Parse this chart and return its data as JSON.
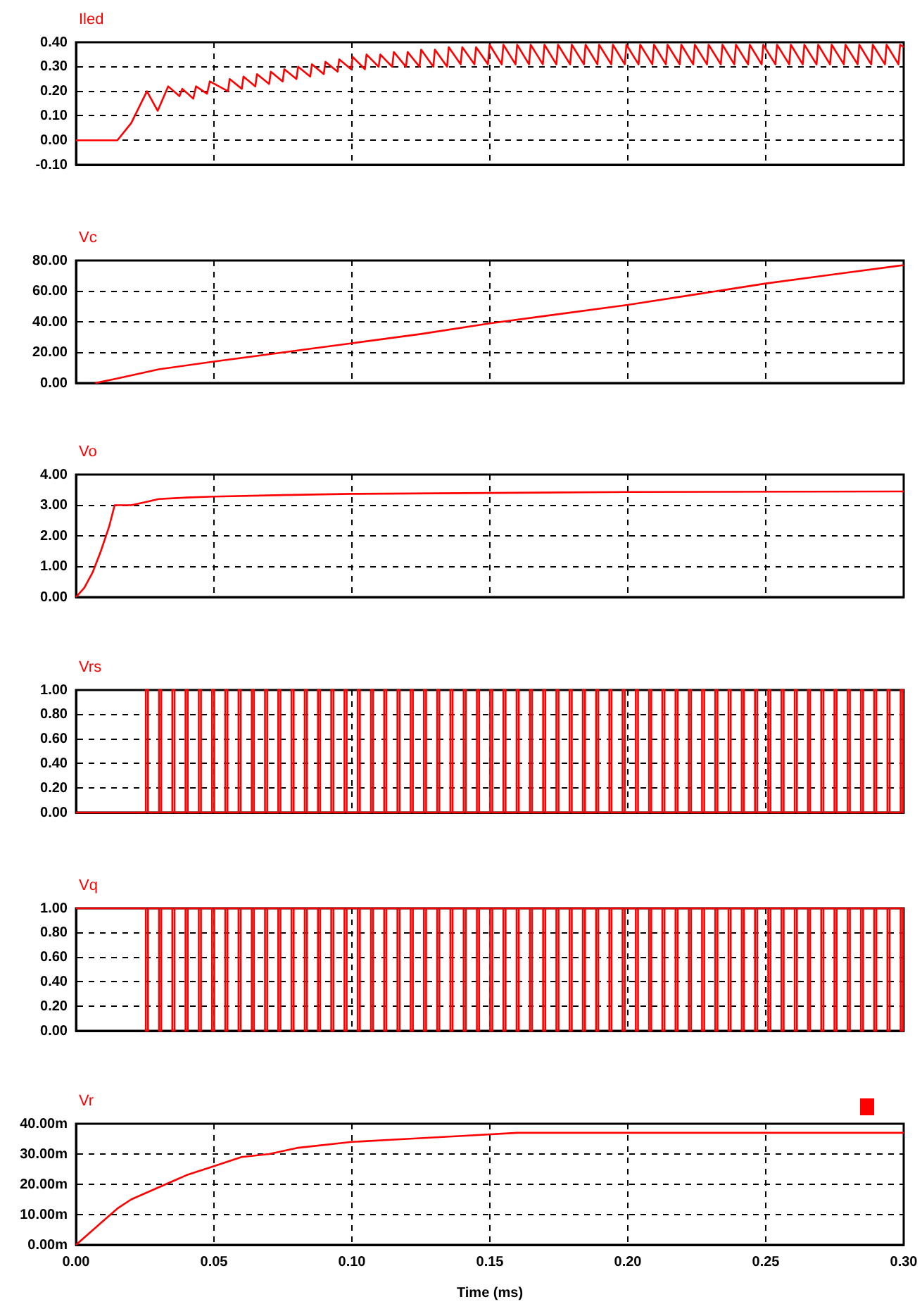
{
  "chart_data": [
    {
      "type": "line",
      "title": "Iled",
      "tick_labels": "y",
      "grid": true,
      "marker": "none",
      "xlim": [
        0,
        0.3
      ],
      "xticks": [
        0,
        0.05,
        0.1,
        0.15,
        0.2,
        0.25,
        0.3
      ],
      "ylim": [
        -0.1,
        0.4
      ],
      "yticks": [
        {
          "value": -0.1,
          "label": "-0.10"
        },
        {
          "value": 0,
          "label": "0.00"
        },
        {
          "value": 0.1,
          "label": "0.10"
        },
        {
          "value": 0.2,
          "label": "0.20"
        },
        {
          "value": 0.3,
          "label": "0.30"
        },
        {
          "value": 0.4,
          "label": "0.40"
        }
      ],
      "x": [
        0,
        0.015,
        0.02,
        0.0257,
        0.0296,
        0.0334,
        0.0375,
        0.0385,
        0.0425,
        0.0435,
        0.0475,
        0.0485,
        0.0551,
        0.0557,
        0.0601,
        0.0607,
        0.065,
        0.0656,
        0.07,
        0.0706,
        0.0749,
        0.0755,
        0.0799,
        0.0805,
        0.0849,
        0.0855,
        0.0898,
        0.0904,
        0.0948,
        0.0954,
        0.0997,
        0.1003,
        0.1047,
        0.1053,
        0.1097,
        0.1103,
        0.1146,
        0.1152,
        0.1196,
        0.1202,
        0.1245,
        0.1251,
        0.1295,
        0.1301,
        0.1345,
        0.1351,
        0.1394,
        0.14,
        0.1444,
        0.145,
        0.1493,
        0.1499,
        0.1543,
        0.1549,
        0.1593,
        0.1599,
        0.1642,
        0.1648,
        0.1692,
        0.1698,
        0.1741,
        0.1747,
        0.1791,
        0.1797,
        0.1841,
        0.1847,
        0.189,
        0.1896,
        0.194,
        0.1946,
        0.1989,
        0.1995,
        0.2039,
        0.2045,
        0.2089,
        0.2095,
        0.2138,
        0.2144,
        0.2188,
        0.2194,
        0.2237,
        0.2243,
        0.2287,
        0.2293,
        0.2337,
        0.2343,
        0.2386,
        0.2392,
        0.2436,
        0.2442,
        0.2485,
        0.2491,
        0.2535,
        0.2541,
        0.2585,
        0.2591,
        0.2634,
        0.264,
        0.2684,
        0.269,
        0.2733,
        0.2739,
        0.2783,
        0.2789,
        0.2833,
        0.2839,
        0.2882,
        0.2888,
        0.2932,
        0.2938,
        0.2981,
        0.2987,
        0.3
      ],
      "series": [
        {
          "color": "#ff0000",
          "values": [
            0,
            0,
            0.07,
            0.2,
            0.12,
            0.22,
            0.18,
            0.21,
            0.17,
            0.22,
            0.19,
            0.24,
            0.2,
            0.25,
            0.21,
            0.26,
            0.22,
            0.27,
            0.23,
            0.28,
            0.24,
            0.29,
            0.25,
            0.3,
            0.26,
            0.31,
            0.27,
            0.32,
            0.28,
            0.33,
            0.29,
            0.34,
            0.29,
            0.35,
            0.3,
            0.35,
            0.3,
            0.36,
            0.3,
            0.36,
            0.3,
            0.37,
            0.3,
            0.37,
            0.3,
            0.38,
            0.31,
            0.38,
            0.31,
            0.38,
            0.31,
            0.39,
            0.31,
            0.39,
            0.31,
            0.39,
            0.31,
            0.39,
            0.31,
            0.39,
            0.31,
            0.39,
            0.31,
            0.39,
            0.31,
            0.39,
            0.31,
            0.39,
            0.31,
            0.39,
            0.31,
            0.39,
            0.31,
            0.39,
            0.31,
            0.39,
            0.31,
            0.39,
            0.31,
            0.39,
            0.31,
            0.39,
            0.31,
            0.39,
            0.31,
            0.39,
            0.31,
            0.39,
            0.31,
            0.39,
            0.31,
            0.39,
            0.31,
            0.39,
            0.31,
            0.39,
            0.31,
            0.39,
            0.31,
            0.39,
            0.31,
            0.39,
            0.31,
            0.39,
            0.31,
            0.39,
            0.31,
            0.39,
            0.31,
            0.39,
            0.31,
            0.39,
            0.38
          ]
        }
      ]
    },
    {
      "type": "line",
      "title": "Vc",
      "tick_labels": "y",
      "grid": true,
      "marker": "none",
      "xlim": [
        0,
        0.3
      ],
      "xticks": [
        0,
        0.05,
        0.1,
        0.15,
        0.2,
        0.25,
        0.3
      ],
      "ylim": [
        0,
        80
      ],
      "yticks": [
        {
          "value": 0,
          "label": "0.00"
        },
        {
          "value": 20,
          "label": "20.00"
        },
        {
          "value": 40,
          "label": "40.00"
        },
        {
          "value": 60,
          "label": "60.00"
        },
        {
          "value": 80,
          "label": "80.00"
        }
      ],
      "x": [
        0.007,
        0.015,
        0.03,
        0.05,
        0.075,
        0.1,
        0.125,
        0.15,
        0.175,
        0.2,
        0.225,
        0.25,
        0.275,
        0.3
      ],
      "series": [
        {
          "color": "#ff0000",
          "values": [
            0,
            3,
            9,
            14,
            20,
            26,
            32,
            39,
            45,
            51,
            58,
            65,
            71,
            77
          ]
        }
      ]
    },
    {
      "type": "line",
      "title": "Vo",
      "tick_labels": "y",
      "grid": true,
      "marker": "none",
      "xlim": [
        0,
        0.3
      ],
      "xticks": [
        0,
        0.05,
        0.1,
        0.15,
        0.2,
        0.25,
        0.3
      ],
      "ylim": [
        0,
        4
      ],
      "yticks": [
        {
          "value": 0,
          "label": "0.00"
        },
        {
          "value": 1,
          "label": "1.00"
        },
        {
          "value": 2,
          "label": "2.00"
        },
        {
          "value": 3,
          "label": "3.00"
        },
        {
          "value": 4,
          "label": "4.00"
        }
      ],
      "x": [
        0,
        0.003,
        0.006,
        0.009,
        0.012,
        0.014,
        0.02,
        0.025,
        0.03,
        0.04,
        0.05,
        0.075,
        0.1,
        0.15,
        0.2,
        0.3
      ],
      "series": [
        {
          "color": "#ff0000",
          "values": [
            0,
            0.3,
            0.8,
            1.5,
            2.3,
            3,
            3,
            3.1,
            3.2,
            3.25,
            3.28,
            3.33,
            3.37,
            3.4,
            3.43,
            3.45
          ]
        }
      ]
    },
    {
      "type": "step",
      "title": "Vrs",
      "tick_labels": "y",
      "grid": true,
      "marker": "none",
      "xlim": [
        0,
        0.3
      ],
      "xticks": [
        0,
        0.05,
        0.1,
        0.15,
        0.2,
        0.25,
        0.3
      ],
      "ylim": [
        0,
        1
      ],
      "yticks": [
        {
          "value": 0,
          "label": "0.00"
        },
        {
          "value": 0.2,
          "label": "0.20"
        },
        {
          "value": 0.4,
          "label": "0.40"
        },
        {
          "value": 0.6,
          "label": "0.60"
        },
        {
          "value": 0.8,
          "label": "0.80"
        },
        {
          "value": 1,
          "label": "1.00"
        }
      ],
      "x": [
        0,
        0.0253,
        0.0261,
        0.0301,
        0.0309,
        0.0349,
        0.0357,
        0.0397,
        0.0405,
        0.0445,
        0.0453,
        0.0493,
        0.0501,
        0.0541,
        0.0549,
        0.0589,
        0.0597,
        0.0637,
        0.0645,
        0.0685,
        0.0693,
        0.0733,
        0.0741,
        0.0781,
        0.0789,
        0.0829,
        0.0837,
        0.0877,
        0.0885,
        0.0925,
        0.0933,
        0.0973,
        0.0981,
        0.1021,
        0.1029,
        0.1069,
        0.1077,
        0.1117,
        0.1125,
        0.1165,
        0.1173,
        0.1213,
        0.1221,
        0.1261,
        0.1269,
        0.1309,
        0.1317,
        0.1357,
        0.1365,
        0.1405,
        0.1413,
        0.1453,
        0.1461,
        0.1501,
        0.1509,
        0.1549,
        0.1557,
        0.1597,
        0.1605,
        0.1645,
        0.1653,
        0.1693,
        0.1701,
        0.1741,
        0.1749,
        0.1789,
        0.1797,
        0.1837,
        0.1845,
        0.1885,
        0.1893,
        0.1933,
        0.1941,
        0.1981,
        0.1989,
        0.2029,
        0.2037,
        0.2077,
        0.2085,
        0.2125,
        0.2133,
        0.2173,
        0.2181,
        0.2221,
        0.2229,
        0.2269,
        0.2277,
        0.2317,
        0.2325,
        0.2365,
        0.2373,
        0.2413,
        0.2421,
        0.2461,
        0.2469,
        0.2509,
        0.2517,
        0.2557,
        0.2565,
        0.2605,
        0.2613,
        0.2653,
        0.2661,
        0.2701,
        0.2709,
        0.2749,
        0.2757,
        0.2797,
        0.2805,
        0.2845,
        0.2853,
        0.2893,
        0.2901,
        0.2941,
        0.2949,
        0.2989,
        0.2997,
        0.3
      ],
      "series": [
        {
          "color": "#ff0000",
          "values": [
            0,
            1,
            0,
            1,
            0,
            1,
            0,
            1,
            0,
            1,
            0,
            1,
            0,
            1,
            0,
            1,
            0,
            1,
            0,
            1,
            0,
            1,
            0,
            1,
            0,
            1,
            0,
            1,
            0,
            1,
            0,
            1,
            0,
            1,
            0,
            1,
            0,
            1,
            0,
            1,
            0,
            1,
            0,
            1,
            0,
            1,
            0,
            1,
            0,
            1,
            0,
            1,
            0,
            1,
            0,
            1,
            0,
            1,
            0,
            1,
            0,
            1,
            0,
            1,
            0,
            1,
            0,
            1,
            0,
            1,
            0,
            1,
            0,
            1,
            0,
            1,
            0,
            1,
            0,
            1,
            0,
            1,
            0,
            1,
            0,
            1,
            0,
            1,
            0,
            1,
            0,
            1,
            0,
            1,
            0,
            1,
            0,
            1,
            0,
            1,
            0,
            1,
            0,
            1,
            0,
            1,
            0,
            1,
            0,
            1,
            0,
            1,
            0,
            1,
            0,
            1,
            0,
            0
          ]
        }
      ]
    },
    {
      "type": "step",
      "title": "Vq",
      "tick_labels": "y",
      "grid": true,
      "marker": "none",
      "xlim": [
        0,
        0.3
      ],
      "xticks": [
        0,
        0.05,
        0.1,
        0.15,
        0.2,
        0.25,
        0.3
      ],
      "ylim": [
        0,
        1
      ],
      "yticks": [
        {
          "value": 0,
          "label": "0.00"
        },
        {
          "value": 0.2,
          "label": "0.20"
        },
        {
          "value": 0.4,
          "label": "0.40"
        },
        {
          "value": 0.6,
          "label": "0.60"
        },
        {
          "value": 0.8,
          "label": "0.80"
        },
        {
          "value": 1,
          "label": "1.00"
        }
      ],
      "x": [
        0,
        0.0253,
        0.0261,
        0.0301,
        0.0309,
        0.0349,
        0.0357,
        0.0397,
        0.0405,
        0.0445,
        0.0453,
        0.0493,
        0.0501,
        0.0541,
        0.0549,
        0.0589,
        0.0597,
        0.0637,
        0.0645,
        0.0685,
        0.0693,
        0.0733,
        0.0741,
        0.0781,
        0.0789,
        0.0829,
        0.0837,
        0.0877,
        0.0885,
        0.0925,
        0.0933,
        0.0973,
        0.0981,
        0.1021,
        0.1029,
        0.1069,
        0.1077,
        0.1117,
        0.1125,
        0.1165,
        0.1173,
        0.1213,
        0.1221,
        0.1261,
        0.1269,
        0.1309,
        0.1317,
        0.1357,
        0.1365,
        0.1405,
        0.1413,
        0.1453,
        0.1461,
        0.1501,
        0.1509,
        0.1549,
        0.1557,
        0.1597,
        0.1605,
        0.1645,
        0.1653,
        0.1693,
        0.1701,
        0.1741,
        0.1749,
        0.1789,
        0.1797,
        0.1837,
        0.1845,
        0.1885,
        0.1893,
        0.1933,
        0.1941,
        0.1981,
        0.1989,
        0.2029,
        0.2037,
        0.2077,
        0.2085,
        0.2125,
        0.2133,
        0.2173,
        0.2181,
        0.2221,
        0.2229,
        0.2269,
        0.2277,
        0.2317,
        0.2325,
        0.2365,
        0.2373,
        0.2413,
        0.2421,
        0.2461,
        0.2469,
        0.2509,
        0.2517,
        0.2557,
        0.2565,
        0.2605,
        0.2613,
        0.2653,
        0.2661,
        0.2701,
        0.2709,
        0.2749,
        0.2757,
        0.2797,
        0.2805,
        0.2845,
        0.2853,
        0.2893,
        0.2901,
        0.2941,
        0.2949,
        0.2989,
        0.2997,
        0.3
      ],
      "series": [
        {
          "color": "#ff0000",
          "values": [
            1,
            0,
            1,
            0,
            1,
            0,
            1,
            0,
            1,
            0,
            1,
            0,
            1,
            0,
            1,
            0,
            1,
            0,
            1,
            0,
            1,
            0,
            1,
            0,
            1,
            0,
            1,
            0,
            1,
            0,
            1,
            0,
            1,
            0,
            1,
            0,
            1,
            0,
            1,
            0,
            1,
            0,
            1,
            0,
            1,
            0,
            1,
            0,
            1,
            0,
            1,
            0,
            1,
            0,
            1,
            0,
            1,
            0,
            1,
            0,
            1,
            0,
            1,
            0,
            1,
            0,
            1,
            0,
            1,
            0,
            1,
            0,
            1,
            0,
            1,
            0,
            1,
            0,
            1,
            0,
            1,
            0,
            1,
            0,
            1,
            0,
            1,
            0,
            1,
            0,
            1,
            0,
            1,
            0,
            1,
            0,
            1,
            0,
            1,
            0,
            1,
            0,
            1,
            0,
            1,
            0,
            1,
            0,
            1,
            0,
            1,
            0,
            1,
            0,
            1,
            0,
            1,
            1
          ]
        }
      ]
    },
    {
      "type": "line",
      "title": "Vr",
      "xlabel": "Time (ms)",
      "grid": true,
      "marker": "none",
      "xlim": [
        0,
        0.3
      ],
      "xticks": [
        {
          "value": 0,
          "label": "0.00"
        },
        {
          "value": 0.05,
          "label": "0.05"
        },
        {
          "value": 0.1,
          "label": "0.10"
        },
        {
          "value": 0.15,
          "label": "0.15"
        },
        {
          "value": 0.2,
          "label": "0.20"
        },
        {
          "value": 0.25,
          "label": "0.25"
        },
        {
          "value": 0.3,
          "label": "0.30"
        }
      ],
      "ylim": [
        0,
        40
      ],
      "yticks": [
        {
          "value": 0,
          "label": "0.00m"
        },
        {
          "value": 10,
          "label": "10.00m"
        },
        {
          "value": 20,
          "label": "20.00m"
        },
        {
          "value": 30,
          "label": "30.00m"
        },
        {
          "value": 40,
          "label": "40.00m"
        }
      ],
      "x": [
        0,
        0.005,
        0.01,
        0.015,
        0.02,
        0.03,
        0.04,
        0.05,
        0.06,
        0.07,
        0.08,
        0.1,
        0.12,
        0.14,
        0.16,
        0.2,
        0.25,
        0.3
      ],
      "series": [
        {
          "color": "#ff0000",
          "values": [
            0,
            4,
            8,
            12,
            15,
            19,
            23,
            26,
            29,
            30,
            32,
            34,
            35,
            36,
            37,
            37,
            37,
            37
          ]
        }
      ]
    }
  ]
}
